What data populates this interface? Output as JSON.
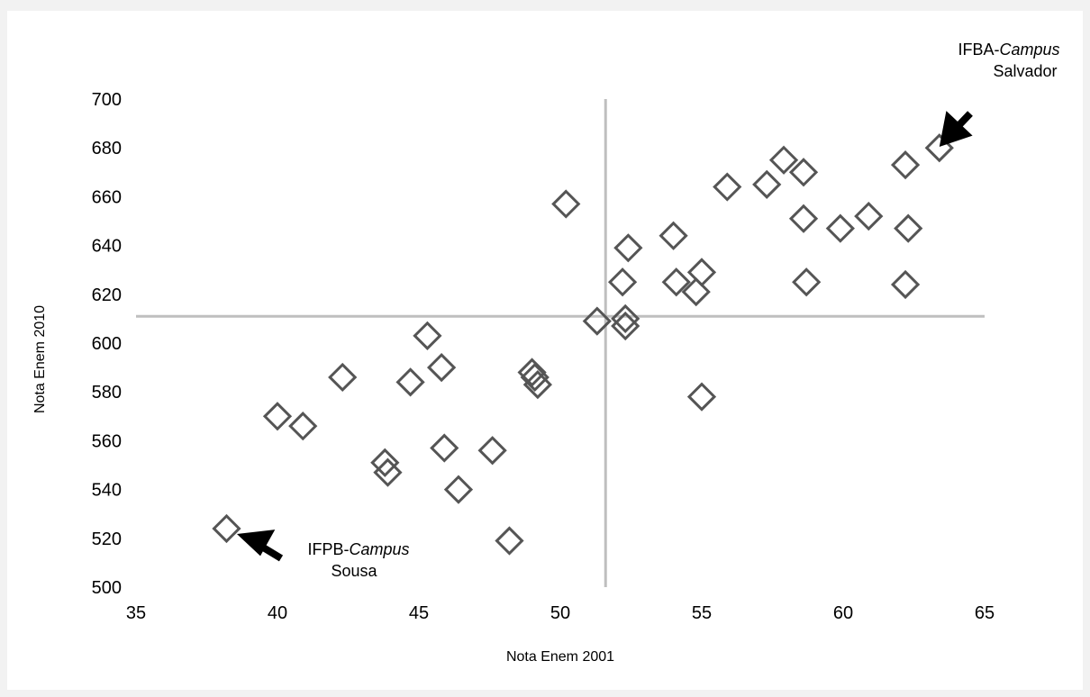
{
  "chart_data": {
    "type": "scatter",
    "xlabel": "Nota Enem 2001",
    "ylabel": "Nota Enem 2010",
    "xlim": [
      35,
      65
    ],
    "ylim": [
      500,
      700
    ],
    "x_ticks": [
      "35",
      "40",
      "45",
      "50",
      "55",
      "60",
      "65"
    ],
    "y_ticks": [
      "500",
      "520",
      "540",
      "560",
      "580",
      "600",
      "620",
      "640",
      "660",
      "680",
      "700"
    ],
    "grid": false,
    "marker": "diamond-outline",
    "marker_color": "#555555",
    "reference_lines": {
      "x": 51.6,
      "y": 611,
      "color": "#bfbfbf"
    },
    "points": [
      {
        "x": 38.2,
        "y": 524
      },
      {
        "x": 40.0,
        "y": 570
      },
      {
        "x": 40.9,
        "y": 566
      },
      {
        "x": 42.3,
        "y": 586
      },
      {
        "x": 43.8,
        "y": 551
      },
      {
        "x": 43.9,
        "y": 547
      },
      {
        "x": 44.7,
        "y": 584
      },
      {
        "x": 45.3,
        "y": 603
      },
      {
        "x": 45.8,
        "y": 590
      },
      {
        "x": 45.9,
        "y": 557
      },
      {
        "x": 46.4,
        "y": 540
      },
      {
        "x": 47.6,
        "y": 556
      },
      {
        "x": 48.2,
        "y": 519
      },
      {
        "x": 49.0,
        "y": 588
      },
      {
        "x": 49.1,
        "y": 586
      },
      {
        "x": 49.2,
        "y": 583
      },
      {
        "x": 50.2,
        "y": 657
      },
      {
        "x": 51.3,
        "y": 609
      },
      {
        "x": 52.2,
        "y": 625
      },
      {
        "x": 52.3,
        "y": 607
      },
      {
        "x": 52.3,
        "y": 610
      },
      {
        "x": 52.4,
        "y": 639
      },
      {
        "x": 54.0,
        "y": 644
      },
      {
        "x": 54.1,
        "y": 625
      },
      {
        "x": 54.8,
        "y": 621
      },
      {
        "x": 55.0,
        "y": 629
      },
      {
        "x": 55.0,
        "y": 578
      },
      {
        "x": 55.9,
        "y": 664
      },
      {
        "x": 57.3,
        "y": 665
      },
      {
        "x": 57.9,
        "y": 675
      },
      {
        "x": 58.6,
        "y": 670
      },
      {
        "x": 58.6,
        "y": 651
      },
      {
        "x": 58.7,
        "y": 625
      },
      {
        "x": 59.9,
        "y": 647
      },
      {
        "x": 60.9,
        "y": 652
      },
      {
        "x": 62.2,
        "y": 673
      },
      {
        "x": 62.3,
        "y": 647
      },
      {
        "x": 62.2,
        "y": 624
      },
      {
        "x": 63.4,
        "y": 680
      }
    ],
    "annotations": {
      "ifpb": {
        "prefix": "IFPB-",
        "emph": "Campus",
        "line2": "Sousa",
        "x": 38.2,
        "y": 524
      },
      "ifba": {
        "prefix": "IFBA-",
        "emph": "Campus",
        "line2": "Salvador",
        "x": 63.4,
        "y": 680
      }
    }
  }
}
